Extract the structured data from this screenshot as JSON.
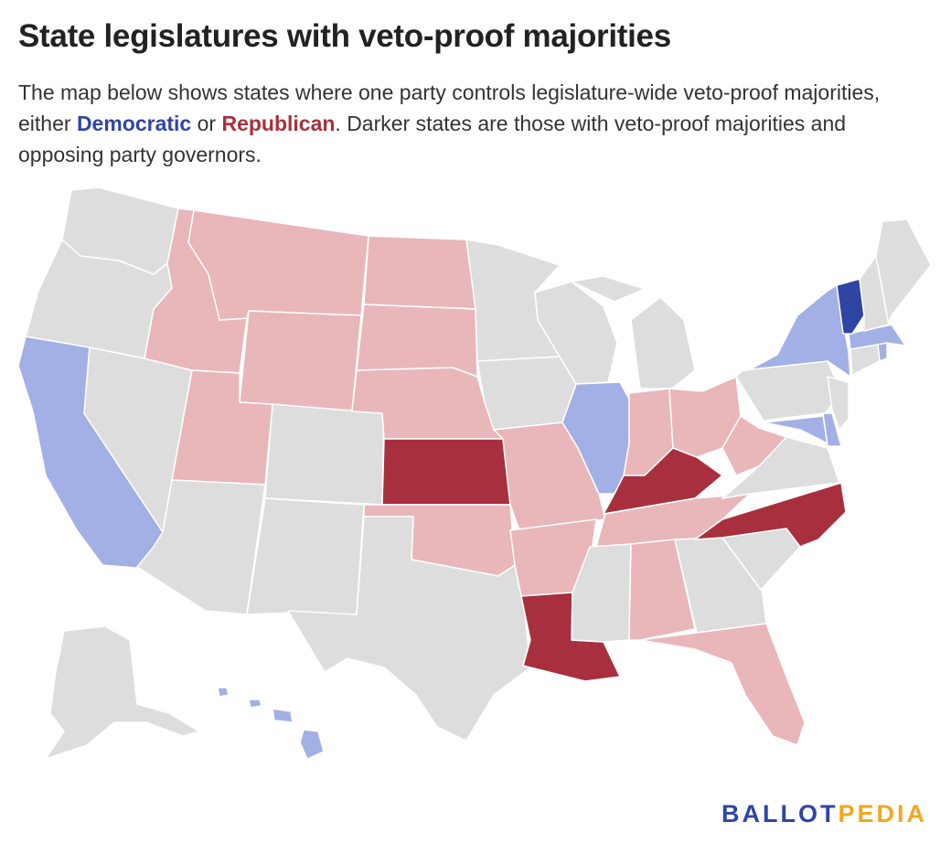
{
  "title": "State legislatures with veto-proof majorities",
  "subtitle": {
    "part1": "The map below shows states where one party controls legislature-wide veto-proof majorities, either ",
    "democratic": "Democratic",
    "part2": " or ",
    "republican": "Republican",
    "part3": ". Darker states are those with veto-proof majorities and opposing party governors."
  },
  "logo": {
    "part1": "BALLOT",
    "part2": "PEDIA"
  },
  "colors": {
    "none": "#dddddd",
    "dem_light": "#a3b0e5",
    "dem_dark": "#2f45a3",
    "rep_light": "#e9b6ba",
    "rep_dark": "#a8303e",
    "border": "#ffffff"
  },
  "states": {
    "WA": "none",
    "OR": "none",
    "CA": "dem_light",
    "NV": "none",
    "ID": "rep_light",
    "MT": "rep_light",
    "WY": "rep_light",
    "UT": "rep_light",
    "AZ": "none",
    "CO": "none",
    "NM": "none",
    "ND": "rep_light",
    "SD": "rep_light",
    "NE": "rep_light",
    "KS": "rep_dark",
    "OK": "rep_light",
    "TX": "none",
    "MN": "none",
    "IA": "none",
    "MO": "rep_light",
    "AR": "rep_light",
    "LA": "rep_dark",
    "WI": "none",
    "IL": "dem_light",
    "MI": "none",
    "IN": "rep_light",
    "OH": "rep_light",
    "KY": "rep_dark",
    "TN": "rep_light",
    "MS": "none",
    "AL": "rep_light",
    "GA": "none",
    "FL": "rep_light",
    "SC": "none",
    "NC": "rep_dark",
    "VA": "none",
    "WV": "rep_light",
    "MD": "dem_light",
    "DE": "dem_light",
    "PA": "none",
    "NJ": "none",
    "NY": "dem_light",
    "CT": "none",
    "RI": "dem_light",
    "MA": "dem_light",
    "VT": "dem_dark",
    "NH": "none",
    "ME": "none",
    "AK": "none",
    "HI": "dem_light"
  }
}
